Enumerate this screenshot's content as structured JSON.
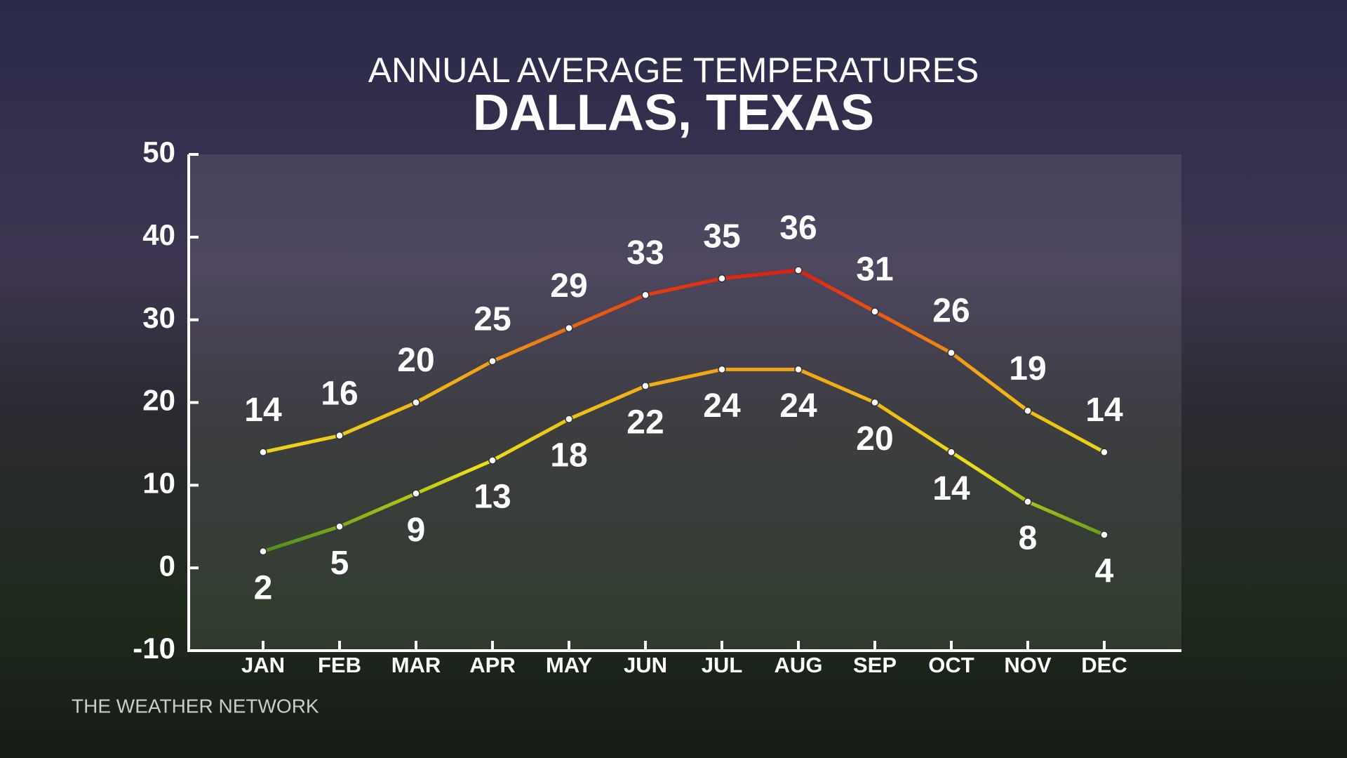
{
  "chart_data": {
    "type": "line",
    "title": "ANNUAL AVERAGE TEMPERATURES",
    "subtitle": "DALLAS, TEXAS",
    "source": "THE WEATHER NETWORK",
    "categories": [
      "JAN",
      "FEB",
      "MAR",
      "APR",
      "MAY",
      "JUN",
      "JUL",
      "AUG",
      "SEP",
      "OCT",
      "NOV",
      "DEC"
    ],
    "series": [
      {
        "values": [
          14,
          16,
          20,
          25,
          29,
          33,
          35,
          36,
          31,
          26,
          19,
          14
        ],
        "label_position": "above"
      },
      {
        "values": [
          2,
          5,
          9,
          13,
          18,
          22,
          24,
          24,
          20,
          14,
          8,
          4
        ],
        "label_position": "below"
      }
    ],
    "line_colors": [
      "#2f7d1c",
      "#e8e01a",
      "#f3a515",
      "#e01e10"
    ],
    "ylim": [
      -10,
      50
    ],
    "yticks": [
      -10,
      0,
      10,
      20,
      30,
      40,
      50
    ]
  }
}
